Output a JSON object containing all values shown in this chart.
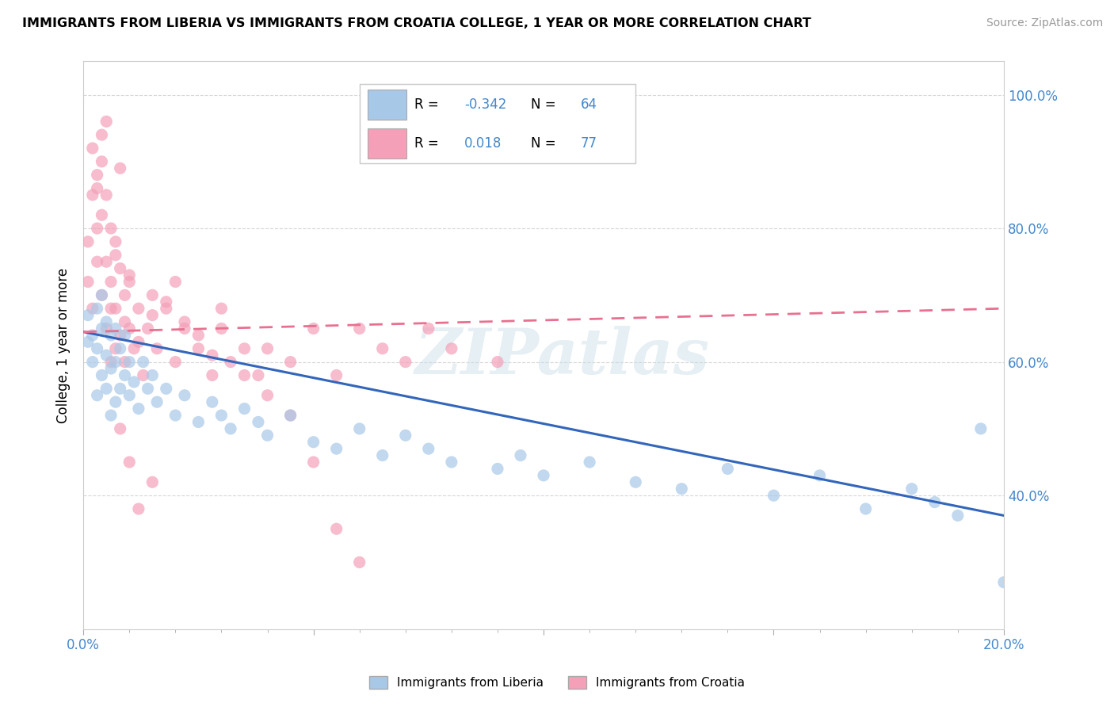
{
  "title": "IMMIGRANTS FROM LIBERIA VS IMMIGRANTS FROM CROATIA COLLEGE, 1 YEAR OR MORE CORRELATION CHART",
  "source_text": "Source: ZipAtlas.com",
  "ylabel": "College, 1 year or more",
  "xlim": [
    0.0,
    0.2
  ],
  "ylim": [
    0.2,
    1.05
  ],
  "liberia_R": -0.342,
  "liberia_N": 64,
  "croatia_R": 0.018,
  "croatia_N": 77,
  "liberia_color": "#a8c8e8",
  "croatia_color": "#f4a0b8",
  "liberia_line_color": "#3366bb",
  "croatia_line_color": "#e87090",
  "watermark_text": "ZIPatlas",
  "background_color": "#ffffff",
  "grid_color": "#d8d8d8",
  "tick_color": "#4488cc",
  "liberia_scatter_x": [
    0.001,
    0.001,
    0.002,
    0.002,
    0.003,
    0.003,
    0.003,
    0.004,
    0.004,
    0.004,
    0.005,
    0.005,
    0.005,
    0.006,
    0.006,
    0.006,
    0.007,
    0.007,
    0.007,
    0.008,
    0.008,
    0.009,
    0.009,
    0.01,
    0.01,
    0.011,
    0.012,
    0.013,
    0.014,
    0.015,
    0.016,
    0.018,
    0.02,
    0.022,
    0.025,
    0.028,
    0.03,
    0.032,
    0.035,
    0.038,
    0.04,
    0.045,
    0.05,
    0.055,
    0.06,
    0.065,
    0.07,
    0.075,
    0.08,
    0.09,
    0.095,
    0.1,
    0.11,
    0.12,
    0.13,
    0.14,
    0.15,
    0.16,
    0.17,
    0.18,
    0.185,
    0.19,
    0.195,
    0.2
  ],
  "liberia_scatter_y": [
    0.63,
    0.67,
    0.6,
    0.64,
    0.55,
    0.62,
    0.68,
    0.58,
    0.65,
    0.7,
    0.56,
    0.61,
    0.66,
    0.52,
    0.59,
    0.64,
    0.54,
    0.6,
    0.65,
    0.56,
    0.62,
    0.58,
    0.64,
    0.6,
    0.55,
    0.57,
    0.53,
    0.6,
    0.56,
    0.58,
    0.54,
    0.56,
    0.52,
    0.55,
    0.51,
    0.54,
    0.52,
    0.5,
    0.53,
    0.51,
    0.49,
    0.52,
    0.48,
    0.47,
    0.5,
    0.46,
    0.49,
    0.47,
    0.45,
    0.44,
    0.46,
    0.43,
    0.45,
    0.42,
    0.41,
    0.44,
    0.4,
    0.43,
    0.38,
    0.41,
    0.39,
    0.37,
    0.5,
    0.27
  ],
  "croatia_scatter_x": [
    0.001,
    0.001,
    0.002,
    0.002,
    0.003,
    0.003,
    0.003,
    0.004,
    0.004,
    0.004,
    0.005,
    0.005,
    0.005,
    0.006,
    0.006,
    0.006,
    0.007,
    0.007,
    0.007,
    0.008,
    0.008,
    0.009,
    0.009,
    0.01,
    0.01,
    0.011,
    0.012,
    0.013,
    0.014,
    0.015,
    0.016,
    0.018,
    0.02,
    0.022,
    0.025,
    0.028,
    0.03,
    0.032,
    0.035,
    0.038,
    0.04,
    0.045,
    0.05,
    0.055,
    0.06,
    0.065,
    0.07,
    0.075,
    0.08,
    0.09,
    0.002,
    0.003,
    0.004,
    0.005,
    0.006,
    0.007,
    0.008,
    0.009,
    0.01,
    0.012,
    0.015,
    0.018,
    0.02,
    0.022,
    0.025,
    0.028,
    0.03,
    0.035,
    0.04,
    0.045,
    0.05,
    0.055,
    0.06,
    0.008,
    0.01,
    0.012,
    0.015
  ],
  "croatia_scatter_y": [
    0.72,
    0.78,
    0.68,
    0.85,
    0.75,
    0.8,
    0.88,
    0.7,
    0.82,
    0.9,
    0.65,
    0.75,
    0.85,
    0.6,
    0.72,
    0.8,
    0.62,
    0.68,
    0.78,
    0.64,
    0.74,
    0.6,
    0.7,
    0.65,
    0.72,
    0.62,
    0.68,
    0.58,
    0.65,
    0.7,
    0.62,
    0.68,
    0.6,
    0.65,
    0.62,
    0.58,
    0.65,
    0.6,
    0.62,
    0.58,
    0.62,
    0.6,
    0.65,
    0.58,
    0.65,
    0.62,
    0.6,
    0.65,
    0.62,
    0.6,
    0.92,
    0.86,
    0.94,
    0.96,
    0.68,
    0.76,
    0.89,
    0.66,
    0.73,
    0.63,
    0.67,
    0.69,
    0.72,
    0.66,
    0.64,
    0.61,
    0.68,
    0.58,
    0.55,
    0.52,
    0.45,
    0.35,
    0.3,
    0.5,
    0.45,
    0.38,
    0.42
  ]
}
